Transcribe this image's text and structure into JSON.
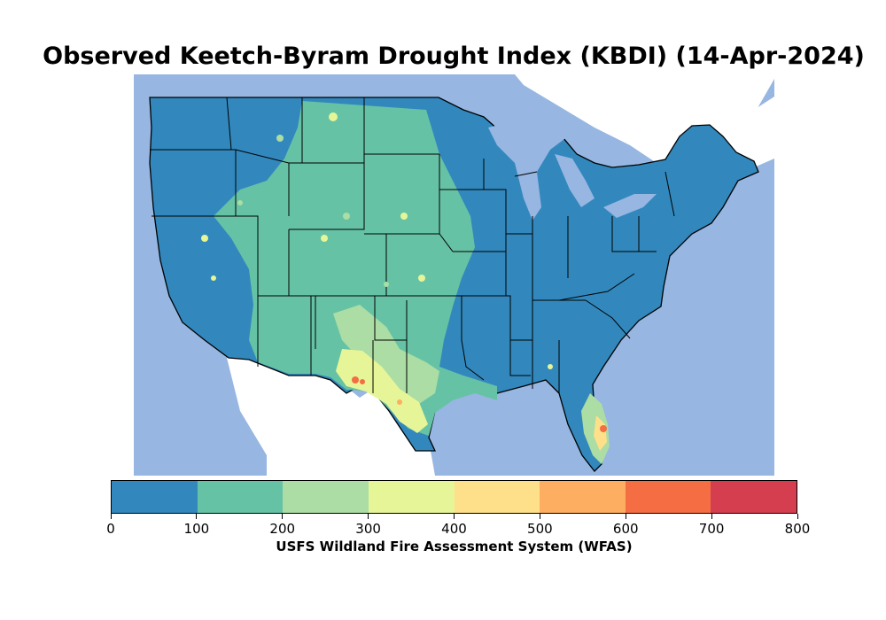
{
  "title": "Observed Keetch-Byram Drought Index (KBDI) (14-Apr-2024)",
  "colorbar": {
    "label": "USFS Wildland Fire Assessment System (WFAS)",
    "ticks": [
      "0",
      "100",
      "200",
      "300",
      "400",
      "500",
      "600",
      "700",
      "800"
    ],
    "bins": [
      {
        "range": "0-100",
        "color": "#3288bd"
      },
      {
        "range": "100-200",
        "color": "#66c2a5"
      },
      {
        "range": "200-300",
        "color": "#abdda4"
      },
      {
        "range": "300-400",
        "color": "#e6f598"
      },
      {
        "range": "400-500",
        "color": "#fee08b"
      },
      {
        "range": "500-600",
        "color": "#fdae61"
      },
      {
        "range": "600-700",
        "color": "#f46d43"
      },
      {
        "range": "700-800",
        "color": "#d53e4f"
      }
    ]
  },
  "map": {
    "ocean_color": "#97b6e1",
    "land_outside_color": "#ffffff",
    "border_color": "#000000"
  }
}
